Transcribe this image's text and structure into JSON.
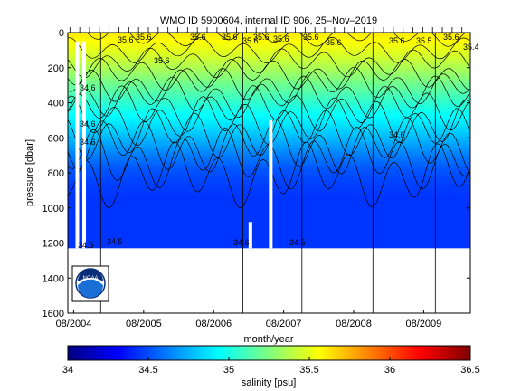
{
  "chart_data": {
    "type": "heatmap",
    "title": "WMO ID 5900604, internal ID 906, 25–Nov–2019",
    "xlabel": "month/year",
    "ylabel": "pressure [dbar]",
    "x_ticks": [
      "08/2004",
      "08/2005",
      "08/2006",
      "08/2007",
      "08/2008",
      "08/2009"
    ],
    "y_ticks": [
      "0",
      "200",
      "400",
      "600",
      "800",
      "1000",
      "1200",
      "1400",
      "1600"
    ],
    "ylim": [
      0,
      1600
    ],
    "y_reversed": true,
    "xlim": [
      "2004-07",
      "2010-04"
    ],
    "data_depth_max": 1230,
    "profile_gaps": [
      {
        "date": "2004-08-20",
        "p_from": 50,
        "p_to": 1230
      },
      {
        "date": "2004-09-25",
        "p_from": 50,
        "p_to": 1230
      },
      {
        "date": "2007-02-10",
        "p_from": 1080,
        "p_to": 1230
      },
      {
        "date": "2007-05-25",
        "p_from": 500,
        "p_to": 1230
      }
    ],
    "section_lines": [
      "2004-12-20",
      "2005-10-05",
      "2007-01-01",
      "2007-11-05",
      "2008-11-10",
      "2009-10-01"
    ],
    "contour_labels": [
      "35.6",
      "35.6",
      "35.6",
      "35.6",
      "35.6",
      "35.6",
      "35.6",
      "35.6",
      "35.6",
      "35.6",
      "35.5",
      "35.6",
      "35.4",
      "35.6",
      "34.6",
      "34.6",
      "34.5",
      "34.5",
      "34.6",
      "34.5",
      "34.6",
      "34.6"
    ],
    "colorbar": {
      "label": "salinity [psu]",
      "min": 34,
      "max": 36.5,
      "ticks": [
        "34",
        "34.5",
        "35",
        "35.5",
        "36",
        "36.5"
      ],
      "colormap": "jet"
    },
    "salinity_profile": {
      "pressure_dbar": [
        0,
        60,
        140,
        220,
        300,
        380,
        460,
        540,
        620,
        700,
        780,
        860,
        940,
        1230
      ],
      "salinity_psu": [
        35.62,
        35.55,
        35.45,
        35.33,
        35.2,
        35.08,
        34.96,
        34.85,
        34.74,
        34.62,
        34.52,
        34.47,
        34.44,
        34.44
      ]
    },
    "grid": false
  },
  "colors": {
    "background": "#ffffff",
    "axes": "#000000",
    "no_data": "#ffffff",
    "logo_blue": "#1a6fd6",
    "logo_dark": "#0b2e7a"
  },
  "logo": {
    "text": "NOAA",
    "icon": "noaa-logo"
  }
}
